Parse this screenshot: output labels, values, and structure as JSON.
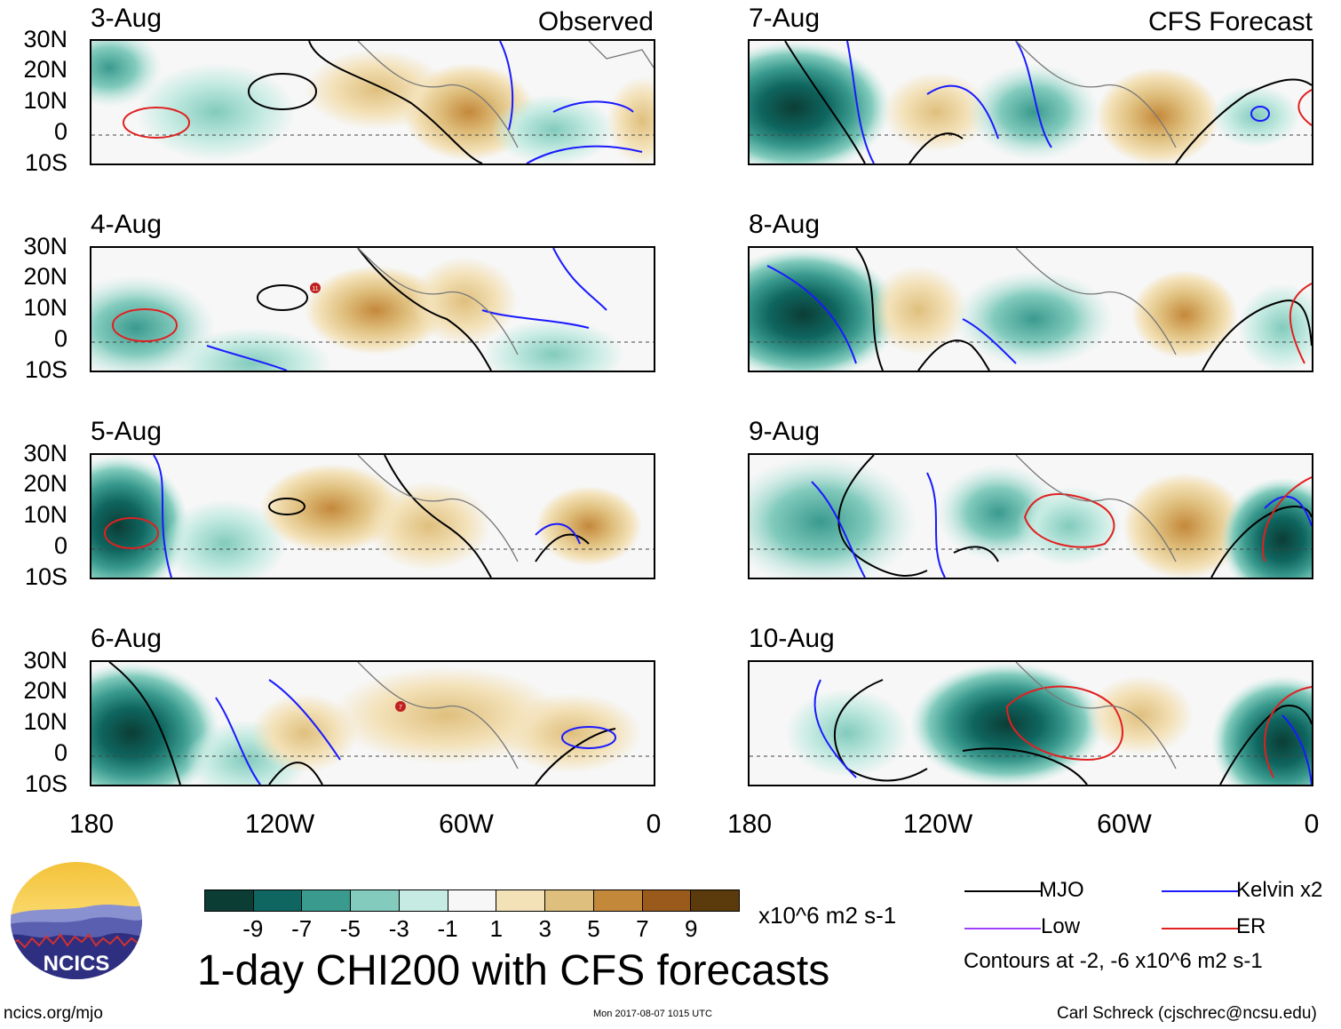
{
  "title": "1-day CHI200 with CFS forecasts",
  "corner_labels": {
    "observed": "Observed",
    "forecast": "CFS Forecast"
  },
  "dates_observed": [
    "3-Aug",
    "4-Aug",
    "5-Aug",
    "6-Aug"
  ],
  "dates_forecast": [
    "7-Aug",
    "8-Aug",
    "9-Aug",
    "10-Aug"
  ],
  "lat_labels": [
    "30N",
    "20N",
    "10N",
    "0",
    "10S"
  ],
  "lon_labels": [
    "180",
    "120W",
    "60W",
    "0"
  ],
  "colorbar": {
    "ticks": [
      "-9",
      "-7",
      "-5",
      "-3",
      "-1",
      "1",
      "3",
      "5",
      "7",
      "9"
    ],
    "units": "x10^6 m2 s-1",
    "colors": [
      "#0b3d35",
      "#0f6660",
      "#3a9a8e",
      "#82cbbd",
      "#c6ebe2",
      "#f7f7f7",
      "#f3e1b8",
      "#dfbf7d",
      "#c4883b",
      "#9a5a1c",
      "#5b3a0c"
    ]
  },
  "legend": {
    "mjo": "MJO",
    "kelvin": "Kelvin x2",
    "low": "Low",
    "er": "ER",
    "contours_note": "Contours at -2, -6 x10^6 m2 s-1",
    "colors": {
      "mjo": "#000000",
      "kelvin": "#1a1aff",
      "low": "#a040ff",
      "er": "#e02020"
    }
  },
  "logo_text": "NCICS",
  "footer": {
    "website": "ncics.org/mjo",
    "timestamp": "Mon 2017-08-07 1015 UTC",
    "author": "Carl Schreck (cjschrec@ncsu.edu)"
  },
  "storm_markers": [
    "11",
    "7"
  ]
}
